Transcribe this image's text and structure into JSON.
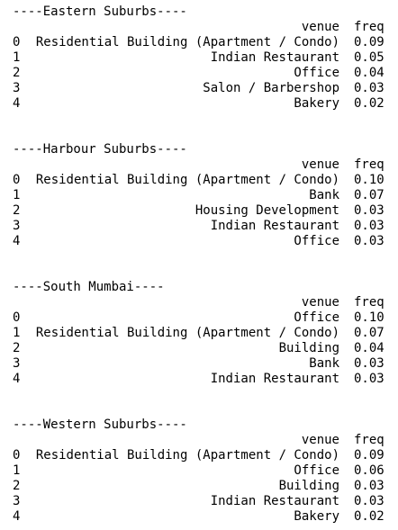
{
  "columns": {
    "venue": "venue",
    "freq": "freq"
  },
  "sections": [
    {
      "title": "----Eastern Suburbs----",
      "rows": [
        {
          "index": "0",
          "venue": "Residential Building (Apartment / Condo)",
          "freq": "0.09"
        },
        {
          "index": "1",
          "venue": "Indian Restaurant",
          "freq": "0.05"
        },
        {
          "index": "2",
          "venue": "Office",
          "freq": "0.04"
        },
        {
          "index": "3",
          "venue": "Salon / Barbershop",
          "freq": "0.03"
        },
        {
          "index": "4",
          "venue": "Bakery",
          "freq": "0.02"
        }
      ]
    },
    {
      "title": "----Harbour Suburbs----",
      "rows": [
        {
          "index": "0",
          "venue": "Residential Building (Apartment / Condo)",
          "freq": "0.10"
        },
        {
          "index": "1",
          "venue": "Bank",
          "freq": "0.07"
        },
        {
          "index": "2",
          "venue": "Housing Development",
          "freq": "0.03"
        },
        {
          "index": "3",
          "venue": "Indian Restaurant",
          "freq": "0.03"
        },
        {
          "index": "4",
          "venue": "Office",
          "freq": "0.03"
        }
      ]
    },
    {
      "title": "----South Mumbai----",
      "rows": [
        {
          "index": "0",
          "venue": "Office",
          "freq": "0.10"
        },
        {
          "index": "1",
          "venue": "Residential Building (Apartment / Condo)",
          "freq": "0.07"
        },
        {
          "index": "2",
          "venue": "Building",
          "freq": "0.04"
        },
        {
          "index": "3",
          "venue": "Bank",
          "freq": "0.03"
        },
        {
          "index": "4",
          "venue": "Indian Restaurant",
          "freq": "0.03"
        }
      ]
    },
    {
      "title": "----Western Suburbs----",
      "rows": [
        {
          "index": "0",
          "venue": "Residential Building (Apartment / Condo)",
          "freq": "0.09"
        },
        {
          "index": "1",
          "venue": "Office",
          "freq": "0.06"
        },
        {
          "index": "2",
          "venue": "Building",
          "freq": "0.03"
        },
        {
          "index": "3",
          "venue": "Indian Restaurant",
          "freq": "0.03"
        },
        {
          "index": "4",
          "venue": "Bakery",
          "freq": "0.02"
        }
      ]
    }
  ]
}
